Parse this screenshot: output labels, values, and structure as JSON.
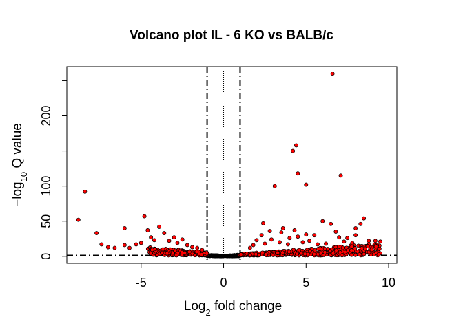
{
  "chart_data": {
    "type": "scatter",
    "title": "Volcano plot IL - 6 KO vs BALB/c",
    "xlabel": {
      "base": "Log",
      "sub": "2",
      "rest": " fold change"
    },
    "ylabel": {
      "pre": "−log",
      "sub": "10",
      "rest": " Q value"
    },
    "xlim": [
      -9.5,
      10.5
    ],
    "ylim": [
      -10,
      270
    ],
    "x_ticks": [
      -5,
      0,
      5,
      10
    ],
    "x_tick_labels": [
      "-5",
      "0",
      "5",
      "10"
    ],
    "y_ticks": [
      0,
      50,
      100,
      150,
      200,
      250
    ],
    "y_tick_labels": [
      "0",
      "50",
      "100",
      "",
      "200",
      ""
    ],
    "grid": false,
    "legend": "none",
    "vlines_dashdot": [
      -1,
      1
    ],
    "vline_dotted": 0,
    "hline_dashdot": 1.3,
    "colors": {
      "significant": "#ff0000",
      "non_significant": "#000000",
      "outline": "#000000"
    },
    "significant_points": [
      [
        -8.8,
        52
      ],
      [
        -8.4,
        92
      ],
      [
        -7.7,
        33
      ],
      [
        -7.4,
        17
      ],
      [
        -7.0,
        13
      ],
      [
        -6.6,
        12
      ],
      [
        -6.0,
        40
      ],
      [
        -6.0,
        16
      ],
      [
        -5.7,
        12
      ],
      [
        -5.3,
        17
      ],
      [
        -5.0,
        19
      ],
      [
        -4.8,
        57
      ],
      [
        -4.6,
        37
      ],
      [
        -4.4,
        27
      ],
      [
        -4.2,
        23
      ],
      [
        -3.9,
        42
      ],
      [
        -3.6,
        33
      ],
      [
        -3.3,
        22
      ],
      [
        -3.0,
        27
      ],
      [
        -2.8,
        19
      ],
      [
        -2.5,
        24
      ],
      [
        -2.2,
        16
      ],
      [
        -1.9,
        13
      ],
      [
        -1.6,
        12
      ],
      [
        -1.3,
        9
      ],
      [
        3.1,
        100
      ],
      [
        4.4,
        158
      ],
      [
        4.2,
        150
      ],
      [
        4.5,
        118
      ],
      [
        5.0,
        102
      ],
      [
        7.1,
        115
      ],
      [
        6.6,
        260
      ],
      [
        1.6,
        12
      ],
      [
        2.0,
        23
      ],
      [
        2.5,
        18
      ],
      [
        2.9,
        24
      ],
      [
        3.4,
        20
      ],
      [
        2.3,
        30
      ],
      [
        2.8,
        36
      ],
      [
        3.5,
        34
      ],
      [
        4.0,
        26
      ],
      [
        4.5,
        28
      ],
      [
        5.0,
        31
      ],
      [
        5.5,
        30
      ],
      [
        6.0,
        50
      ],
      [
        6.5,
        46
      ],
      [
        7.0,
        27
      ],
      [
        7.5,
        26
      ],
      [
        8.0,
        40
      ],
      [
        8.3,
        46
      ],
      [
        8.5,
        54
      ],
      [
        8.8,
        22
      ],
      [
        9.2,
        22
      ],
      [
        9.5,
        21
      ],
      [
        6.2,
        18
      ],
      [
        4.8,
        20
      ],
      [
        3.9,
        17
      ],
      [
        7.8,
        19
      ],
      [
        5.7,
        17
      ],
      [
        2.4,
        47
      ],
      [
        3.6,
        40
      ],
      [
        4.3,
        37
      ],
      [
        6.8,
        35
      ],
      [
        8.0,
        30
      ],
      [
        1.8,
        16
      ],
      [
        5.2,
        22
      ],
      [
        7.3,
        21
      ]
    ],
    "dense_bands": {
      "left": {
        "x_range": [
          -4.5,
          -1.0
        ],
        "note": "dense red cluster near zero"
      },
      "right": {
        "x_range": [
          1.0,
          9.6
        ],
        "note": "dense red cluster rising with fold change"
      },
      "center": {
        "x_range": [
          -1.0,
          1.0
        ],
        "note": "non-significant black points"
      }
    }
  }
}
